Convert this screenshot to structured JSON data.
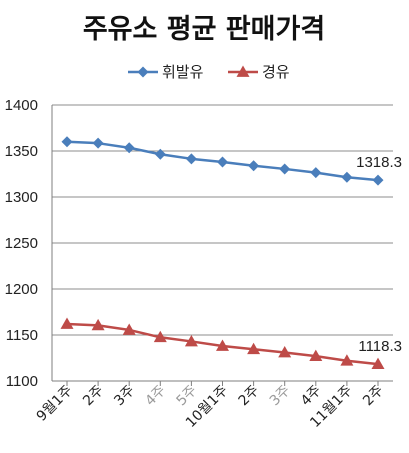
{
  "chart_data": {
    "type": "line",
    "title": "주유소 평균 판매가격",
    "categories": [
      "9월1주",
      "2주",
      "3주",
      "4주",
      "5주",
      "10월1주",
      "2주",
      "3주",
      "4주",
      "11월1주",
      "2주"
    ],
    "series": [
      {
        "name": "휘발유",
        "color": "#4a7ebb",
        "marker": "diamond",
        "values": [
          1360,
          1358.5,
          1353.5,
          1346.5,
          1341.5,
          1338,
          1334,
          1330.5,
          1326.5,
          1321.5,
          1318.3
        ]
      },
      {
        "name": "경유",
        "color": "#be4b48",
        "marker": "triangle",
        "values": [
          1162,
          1160.5,
          1155.5,
          1147.5,
          1143,
          1138,
          1134.5,
          1131,
          1127,
          1122,
          1118.3
        ]
      }
    ],
    "annotations": [
      "1318.3",
      "1118.3"
    ],
    "ylim": [
      1100,
      1400
    ],
    "yticks": [
      1100,
      1150,
      1200,
      1250,
      1300,
      1350,
      1400
    ],
    "grid": true,
    "legend": "top-center",
    "xlabel": "",
    "ylabel": ""
  }
}
